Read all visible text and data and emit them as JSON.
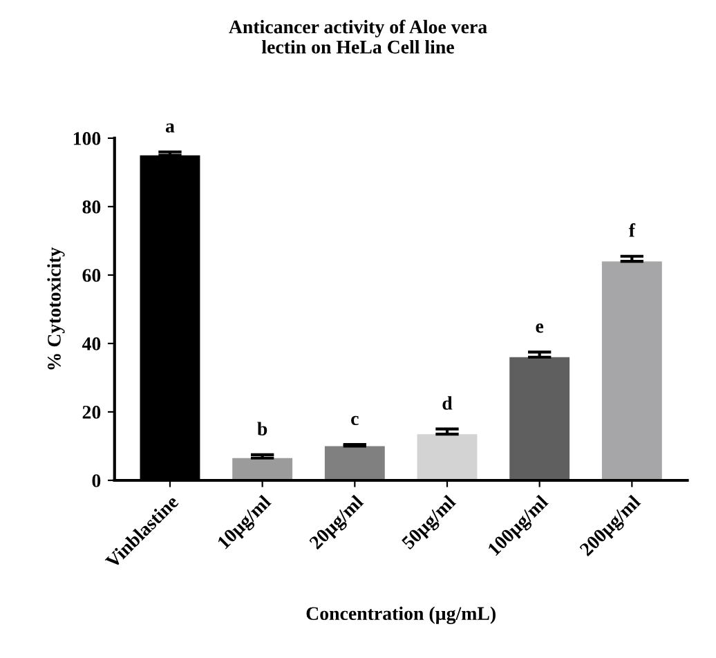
{
  "chart_data": {
    "type": "bar",
    "title": "Anticancer activity of Aloe vera\nlectin on HeLa Cell line",
    "xlabel": "Concentration (µg/mL)",
    "ylabel": "% Cytotoxicity",
    "categories": [
      "Vinblastine",
      "10µg/ml",
      "20µg/ml",
      "50µg/ml",
      "100µg/ml",
      "200µg/ml"
    ],
    "values": [
      95,
      6.5,
      10,
      13.5,
      36,
      64
    ],
    "errors": [
      [
        95,
        96
      ],
      [
        6.5,
        7.5
      ],
      [
        10,
        10.5
      ],
      [
        13.5,
        15
      ],
      [
        36,
        37.5
      ],
      [
        64,
        65.5
      ]
    ],
    "colors": [
      "#000000",
      "#9b9b9b",
      "#808080",
      "#d3d3d3",
      "#5f5f5f",
      "#a6a6a8"
    ],
    "ylim": [
      0,
      100
    ],
    "yticks": [
      0,
      20,
      40,
      60,
      80,
      100
    ],
    "grid": false,
    "legend": false,
    "annotations": [
      "a",
      "b",
      "c",
      "d",
      "e",
      "f"
    ]
  }
}
